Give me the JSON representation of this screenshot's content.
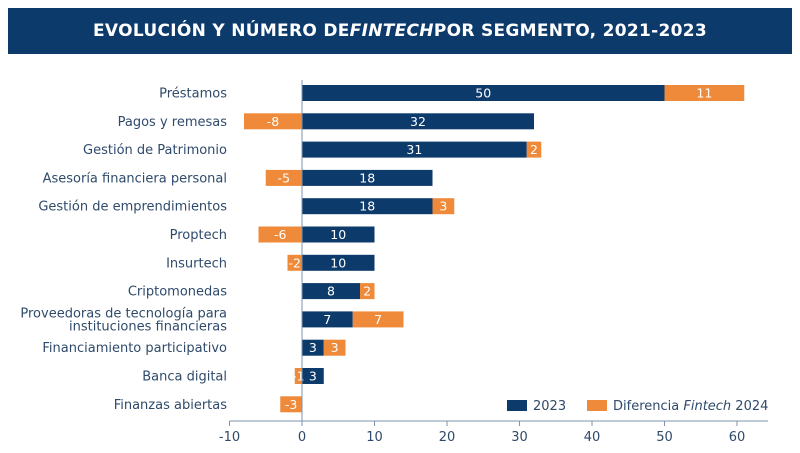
{
  "title": {
    "part1": "EVOLUCIÓN Y NÚMERO DE ",
    "italic": "FINTECH",
    "part2": " POR SEGMENTO, 2021-2023"
  },
  "colors": {
    "banner": "#0c3a6b",
    "series_2023": "#0c3a6b",
    "series_diff": "#ef8a3a",
    "axis": "#7f95ad",
    "text": "#2f4a6b"
  },
  "chart_data": {
    "type": "bar",
    "orientation": "horizontal",
    "stacked": true,
    "categories": [
      "Préstamos",
      "Pagos y remesas",
      "Gestión de Patrimonio",
      "Asesoría financiera personal",
      "Gestión de emprendimientos",
      "Proptech",
      "Insurtech",
      "Criptomonedas",
      "Proveedoras de tecnología para instituciones financieras",
      "Financiamiento participativo",
      "Banca digital",
      "Finanzas abiertas"
    ],
    "category_lines": [
      [
        "Préstamos"
      ],
      [
        "Pagos y remesas"
      ],
      [
        "Gestión de Patrimonio"
      ],
      [
        "Asesoría financiera personal"
      ],
      [
        "Gestión de emprendimientos"
      ],
      [
        "Proptech"
      ],
      [
        "Insurtech"
      ],
      [
        "Criptomonedas"
      ],
      [
        "Proveedoras de tecnología para",
        "instituciones financieras"
      ],
      [
        "Financiamiento participativo"
      ],
      [
        "Banca digital"
      ],
      [
        "Finanzas abiertas"
      ]
    ],
    "series": [
      {
        "name": "2023",
        "values": [
          50,
          32,
          31,
          18,
          18,
          10,
          10,
          8,
          7,
          3,
          3,
          0
        ]
      },
      {
        "name": "Diferencia Fintech 2024",
        "name_plain": "Diferencia ",
        "name_italic": "Fintech",
        "name_tail": " 2024",
        "values": [
          11,
          -8,
          2,
          -5,
          3,
          -6,
          -2,
          2,
          7,
          3,
          -1,
          -3
        ]
      }
    ],
    "xlim": [
      -10,
      62
    ],
    "xticks": [
      -10,
      0,
      10,
      20,
      30,
      40,
      50,
      60
    ],
    "legend_position": "bottom-right",
    "grid": false
  }
}
